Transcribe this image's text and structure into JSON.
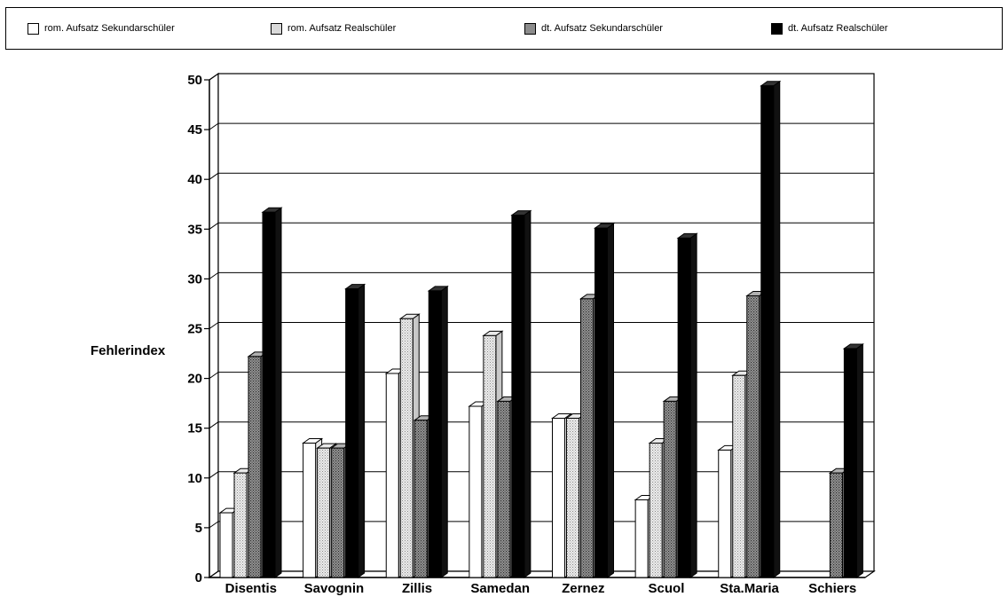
{
  "chart_data": {
    "type": "bar",
    "title": "",
    "xlabel": "",
    "ylabel": "Fehlerindex",
    "ylim": [
      0,
      50
    ],
    "yticks": [
      0,
      5,
      10,
      15,
      20,
      25,
      30,
      35,
      40,
      45,
      50
    ],
    "grid": true,
    "legend_position": "top",
    "categories": [
      "Disentis",
      "Savognin",
      "Zillis",
      "Samedan",
      "Zernez",
      "Scuol",
      "Sta.Maria",
      "Schiers"
    ],
    "series": [
      {
        "name": "rom. Aufsatz Sekundarschüler",
        "color": "#ffffff",
        "pattern": "none",
        "values": [
          6.5,
          13.5,
          20.5,
          17.2,
          16.0,
          7.8,
          12.8,
          null
        ]
      },
      {
        "name": "rom. Aufsatz Realschüler",
        "color": "#d9d9d9",
        "pattern": "light-dots",
        "values": [
          10.5,
          13.0,
          26.0,
          24.3,
          16.0,
          13.5,
          20.3,
          null
        ]
      },
      {
        "name": "dt. Aufsatz Sekundarschüler",
        "color": "#8c8c8c",
        "pattern": "dark-dots",
        "values": [
          22.2,
          13.0,
          15.8,
          17.7,
          28.0,
          17.7,
          28.3,
          10.5
        ]
      },
      {
        "name": "dt. Aufsatz Realschüler",
        "color": "#000000",
        "pattern": "solid",
        "values": [
          36.7,
          29.0,
          28.8,
          36.4,
          35.1,
          34.1,
          49.4,
          23.0
        ]
      }
    ]
  }
}
